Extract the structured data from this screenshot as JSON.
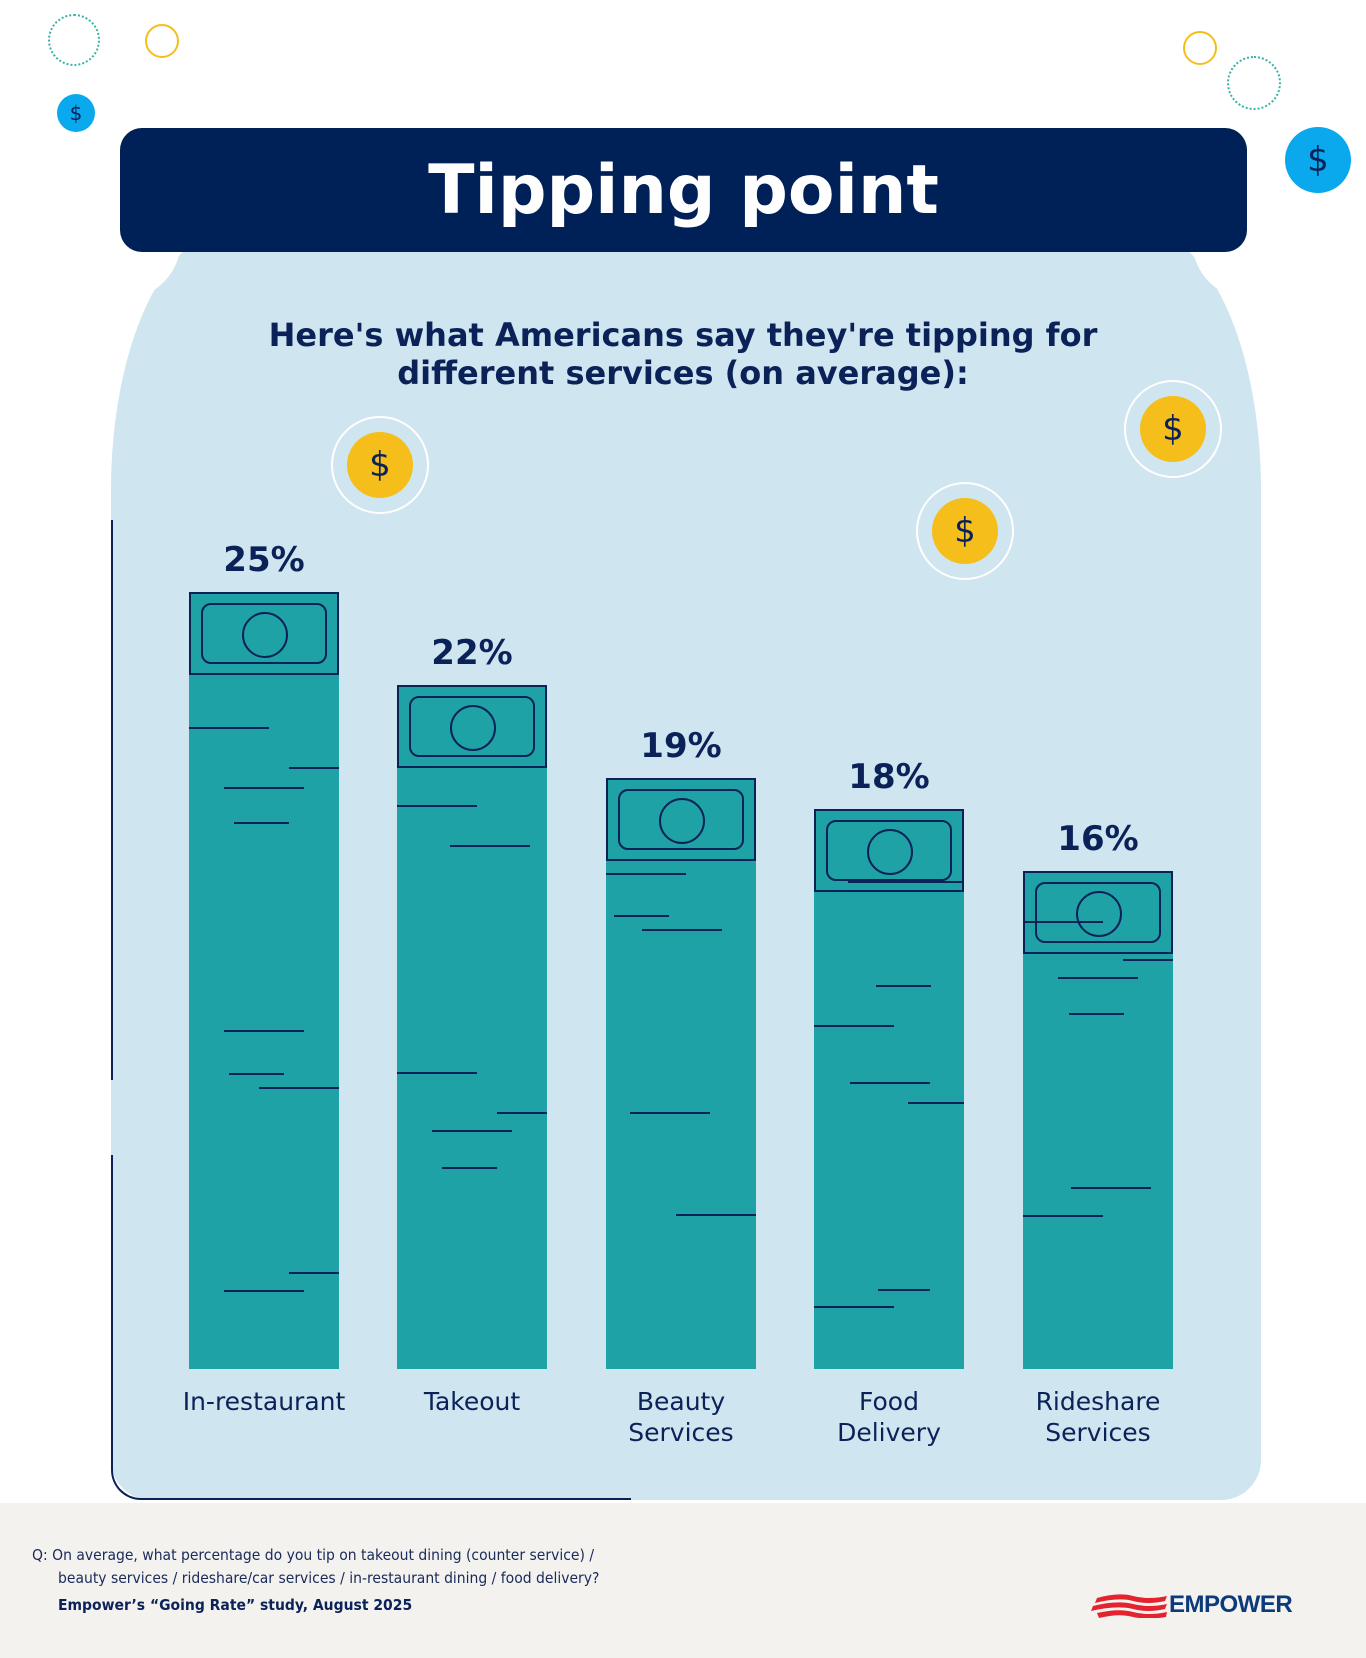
{
  "title": "Tipping point",
  "subtitle_line1": "Here's what Americans say they're tipping for",
  "subtitle_line2": "different services (on average):",
  "icons": {
    "coin": "dollar-coin-icon",
    "bill": "dollar-bill-icon"
  },
  "colors": {
    "bar": "#1fa2a6",
    "navy": "#002157",
    "jar": "#cfe5ef",
    "coin": "#f5be1b",
    "blue_coin": "#0aa8ec"
  },
  "chart_data": {
    "type": "bar",
    "categories": [
      "In-restaurant",
      "Takeout",
      "Beauty Services",
      "Food Delivery",
      "Rideshare Services"
    ],
    "category_lines": [
      [
        "In-restaurant"
      ],
      [
        "Takeout"
      ],
      [
        "Beauty",
        "Services"
      ],
      [
        "Food",
        "Delivery"
      ],
      [
        "Rideshare",
        "Services"
      ]
    ],
    "values": [
      25,
      22,
      19,
      18,
      16
    ],
    "data_labels": [
      "25%",
      "22%",
      "19%",
      "18%",
      "16%"
    ],
    "unit": "%",
    "grid": false
  },
  "footer": {
    "question_line1": "Q: On average, what percentage do you tip on takeout dining (counter service) /",
    "question_line2": "beauty services / rideshare/car services / in-restaurant dining / food delivery?",
    "source": "Empower’s “Going Rate” study, August 2025",
    "logo": "EMPOWER"
  }
}
